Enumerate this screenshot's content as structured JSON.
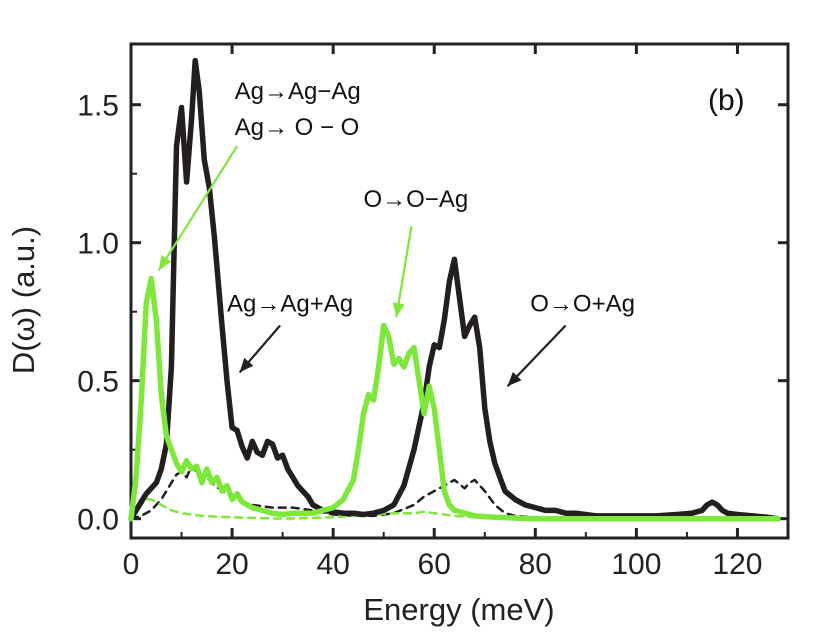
{
  "chart_data": {
    "type": "line",
    "title": "",
    "panel_label": "(b)",
    "xlabel": "Energy (meV)",
    "ylabel": "D(ω)  (a.u.)",
    "xlim": [
      0,
      130
    ],
    "ylim": [
      -0.07,
      1.72
    ],
    "xticks": [
      0,
      20,
      40,
      60,
      80,
      100,
      120
    ],
    "xtick_labels": [
      "0",
      "20",
      "40",
      "60",
      "80",
      "100",
      "120"
    ],
    "yticks": [
      0.0,
      0.5,
      1.0,
      1.5
    ],
    "ytick_labels": [
      "0.0",
      "0.5",
      "1.0",
      "1.5"
    ],
    "grid": false,
    "series": [
      {
        "name": "total-black",
        "color": "#231f20",
        "style": "solid",
        "points": [
          [
            0,
            0
          ],
          [
            1,
            0.03
          ],
          [
            2,
            0.06
          ],
          [
            3,
            0.09
          ],
          [
            4,
            0.11
          ],
          [
            5,
            0.13
          ],
          [
            6,
            0.18
          ],
          [
            7,
            0.27
          ],
          [
            8,
            0.55
          ],
          [
            9,
            1.35
          ],
          [
            10,
            1.49
          ],
          [
            11,
            1.22
          ],
          [
            12,
            1.45
          ],
          [
            12.7,
            1.66
          ],
          [
            13.5,
            1.55
          ],
          [
            14.5,
            1.3
          ],
          [
            15.5,
            1.2
          ],
          [
            16.5,
            1.02
          ],
          [
            18,
            0.7
          ],
          [
            19,
            0.5
          ],
          [
            20,
            0.33
          ],
          [
            21,
            0.32
          ],
          [
            22,
            0.26
          ],
          [
            23,
            0.22
          ],
          [
            24,
            0.28
          ],
          [
            25,
            0.24
          ],
          [
            26,
            0.23
          ],
          [
            27,
            0.28
          ],
          [
            28,
            0.27
          ],
          [
            29,
            0.22
          ],
          [
            30,
            0.23
          ],
          [
            31,
            0.18
          ],
          [
            33,
            0.12
          ],
          [
            35,
            0.08
          ],
          [
            36,
            0.05
          ],
          [
            38,
            0.03
          ],
          [
            40,
            0.025
          ],
          [
            42,
            0.02
          ],
          [
            44,
            0.02
          ],
          [
            46,
            0.015
          ],
          [
            48,
            0.02
          ],
          [
            50,
            0.03
          ],
          [
            52,
            0.05
          ],
          [
            54,
            0.12
          ],
          [
            56,
            0.25
          ],
          [
            58,
            0.42
          ],
          [
            59,
            0.55
          ],
          [
            60,
            0.63
          ],
          [
            61,
            0.62
          ],
          [
            62,
            0.72
          ],
          [
            63,
            0.86
          ],
          [
            64,
            0.94
          ],
          [
            65,
            0.8
          ],
          [
            66,
            0.66
          ],
          [
            67,
            0.7
          ],
          [
            68,
            0.73
          ],
          [
            69,
            0.62
          ],
          [
            70,
            0.4
          ],
          [
            71,
            0.28
          ],
          [
            72,
            0.2
          ],
          [
            73,
            0.15
          ],
          [
            74,
            0.1
          ],
          [
            76,
            0.07
          ],
          [
            78,
            0.05
          ],
          [
            80,
            0.04
          ],
          [
            82,
            0.03
          ],
          [
            84,
            0.03
          ],
          [
            86,
            0.02
          ],
          [
            88,
            0.02
          ],
          [
            92,
            0.01
          ],
          [
            96,
            0.01
          ],
          [
            100,
            0.01
          ],
          [
            104,
            0.01
          ],
          [
            108,
            0.015
          ],
          [
            111,
            0.02
          ],
          [
            113,
            0.03
          ],
          [
            114,
            0.05
          ],
          [
            115,
            0.06
          ],
          [
            116,
            0.05
          ],
          [
            117,
            0.03
          ],
          [
            118,
            0.02
          ],
          [
            120,
            0.015
          ],
          [
            123,
            0.01
          ],
          [
            126,
            0.005
          ],
          [
            128,
            0.0
          ]
        ]
      },
      {
        "name": "total-green",
        "color": "#7ee83a",
        "style": "solid",
        "points": [
          [
            0,
            0
          ],
          [
            1,
            0.15
          ],
          [
            2,
            0.42
          ],
          [
            3,
            0.78
          ],
          [
            4,
            0.87
          ],
          [
            5,
            0.72
          ],
          [
            6,
            0.45
          ],
          [
            7,
            0.3
          ],
          [
            8,
            0.25
          ],
          [
            9,
            0.2
          ],
          [
            10,
            0.17
          ],
          [
            11,
            0.21
          ],
          [
            12,
            0.18
          ],
          [
            13,
            0.19
          ],
          [
            14,
            0.13
          ],
          [
            15,
            0.18
          ],
          [
            16,
            0.13
          ],
          [
            17,
            0.15
          ],
          [
            18,
            0.1
          ],
          [
            19,
            0.12
          ],
          [
            20,
            0.07
          ],
          [
            21,
            0.09
          ],
          [
            22,
            0.06
          ],
          [
            24,
            0.04
          ],
          [
            26,
            0.03
          ],
          [
            28,
            0.02
          ],
          [
            30,
            0.015
          ],
          [
            32,
            0.02
          ],
          [
            34,
            0.02
          ],
          [
            36,
            0.02
          ],
          [
            38,
            0.03
          ],
          [
            40,
            0.04
          ],
          [
            42,
            0.07
          ],
          [
            44,
            0.14
          ],
          [
            45,
            0.25
          ],
          [
            46,
            0.38
          ],
          [
            47,
            0.45
          ],
          [
            48,
            0.43
          ],
          [
            49,
            0.55
          ],
          [
            50,
            0.7
          ],
          [
            51,
            0.66
          ],
          [
            52,
            0.56
          ],
          [
            53,
            0.58
          ],
          [
            54,
            0.55
          ],
          [
            55,
            0.6
          ],
          [
            56,
            0.62
          ],
          [
            57,
            0.5
          ],
          [
            58,
            0.38
          ],
          [
            59,
            0.48
          ],
          [
            60,
            0.4
          ],
          [
            61,
            0.25
          ],
          [
            62,
            0.1
          ],
          [
            63,
            0.05
          ],
          [
            64,
            0.03
          ],
          [
            66,
            0.02
          ],
          [
            68,
            0.01
          ],
          [
            72,
            0.005
          ],
          [
            80,
            0.0
          ],
          [
            128,
            0.0
          ]
        ]
      },
      {
        "name": "partial-black-dashed",
        "color": "#231f20",
        "style": "dashed",
        "points": [
          [
            0,
            0
          ],
          [
            2,
            0.01
          ],
          [
            4,
            0.03
          ],
          [
            6,
            0.07
          ],
          [
            8,
            0.13
          ],
          [
            9,
            0.16
          ],
          [
            10,
            0.17
          ],
          [
            11,
            0.15
          ],
          [
            12,
            0.19
          ],
          [
            13,
            0.17
          ],
          [
            14,
            0.14
          ],
          [
            15,
            0.15
          ],
          [
            16,
            0.13
          ],
          [
            18,
            0.1
          ],
          [
            20,
            0.08
          ],
          [
            22,
            0.06
          ],
          [
            24,
            0.05
          ],
          [
            28,
            0.04
          ],
          [
            32,
            0.04
          ],
          [
            36,
            0.03
          ],
          [
            40,
            0.015
          ],
          [
            44,
            0.01
          ],
          [
            48,
            0.01
          ],
          [
            52,
            0.02
          ],
          [
            56,
            0.05
          ],
          [
            58,
            0.08
          ],
          [
            60,
            0.1
          ],
          [
            62,
            0.12
          ],
          [
            64,
            0.14
          ],
          [
            66,
            0.11
          ],
          [
            67,
            0.13
          ],
          [
            68,
            0.14
          ],
          [
            70,
            0.1
          ],
          [
            72,
            0.05
          ],
          [
            74,
            0.02
          ],
          [
            76,
            0.01
          ],
          [
            80,
            0.005
          ],
          [
            128,
            0.0
          ]
        ]
      },
      {
        "name": "partial-green-dashed",
        "color": "#7ee83a",
        "style": "dashed",
        "points": [
          [
            0,
            0
          ],
          [
            1,
            0.02
          ],
          [
            2,
            0.05
          ],
          [
            3,
            0.07
          ],
          [
            4,
            0.07
          ],
          [
            5,
            0.06
          ],
          [
            6,
            0.05
          ],
          [
            8,
            0.03
          ],
          [
            10,
            0.02
          ],
          [
            14,
            0.01
          ],
          [
            20,
            0.005
          ],
          [
            30,
            0.0
          ],
          [
            40,
            0.005
          ],
          [
            44,
            0.01
          ],
          [
            48,
            0.015
          ],
          [
            52,
            0.02
          ],
          [
            56,
            0.02
          ],
          [
            58,
            0.025
          ],
          [
            60,
            0.02
          ],
          [
            62,
            0.015
          ],
          [
            64,
            0.01
          ],
          [
            68,
            0.005
          ],
          [
            72,
            0.0
          ],
          [
            128,
            0.0
          ]
        ]
      }
    ],
    "annotations": [
      {
        "text": "Ag→Ag−Ag",
        "tx": 20.5,
        "ty": 1.52
      },
      {
        "text": "Ag→ O − O",
        "tx": 20.5,
        "ty": 1.39
      },
      {
        "text": "O→O−Ag",
        "tx": 46,
        "ty": 1.13
      },
      {
        "text": "Ag→Ag+Ag",
        "tx": 19,
        "ty": 0.75
      },
      {
        "text": "O→O+Ag",
        "tx": 79,
        "ty": 0.75
      }
    ],
    "arrows": [
      {
        "color": "#7ee83a",
        "from": [
          21,
          1.35
        ],
        "to": [
          5.5,
          0.9
        ]
      },
      {
        "color": "#7ee83a",
        "from": [
          55.5,
          1.06
        ],
        "to": [
          52.5,
          0.73
        ]
      },
      {
        "color": "#231f20",
        "from": [
          29.5,
          0.7
        ],
        "to": [
          21.5,
          0.53
        ]
      },
      {
        "color": "#231f20",
        "from": [
          86,
          0.7
        ],
        "to": [
          74.5,
          0.48
        ]
      }
    ]
  }
}
